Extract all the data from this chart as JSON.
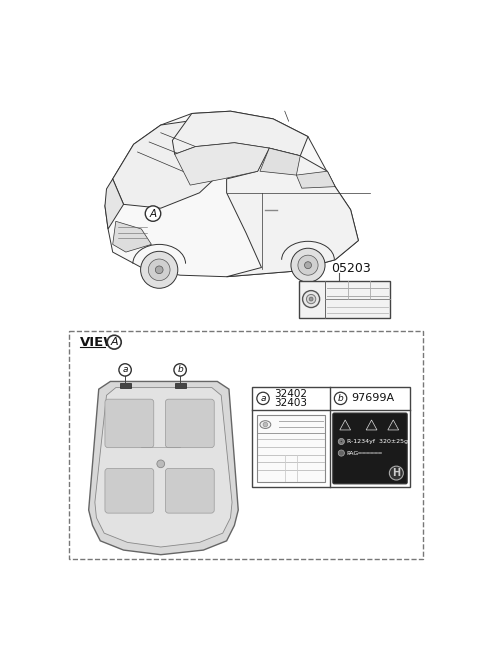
{
  "bg_color": "#ffffff",
  "part_number_05203": "05203",
  "part_number_32402": "32402",
  "part_number_32403": "32403",
  "part_number_97699A": "97699A",
  "view_label": "VIEW",
  "circle_A_label": "A",
  "circle_a_label": "a",
  "circle_b_label": "b",
  "ref_text_line1": "R-1234yf  320±25g",
  "ref_text_line2": "PAG",
  "dashed_box_color": "#777777",
  "line_color": "#333333",
  "gray_fill": "#d8d8d8",
  "light_gray": "#eeeeee",
  "dark_sticker": "#1a1a1a"
}
